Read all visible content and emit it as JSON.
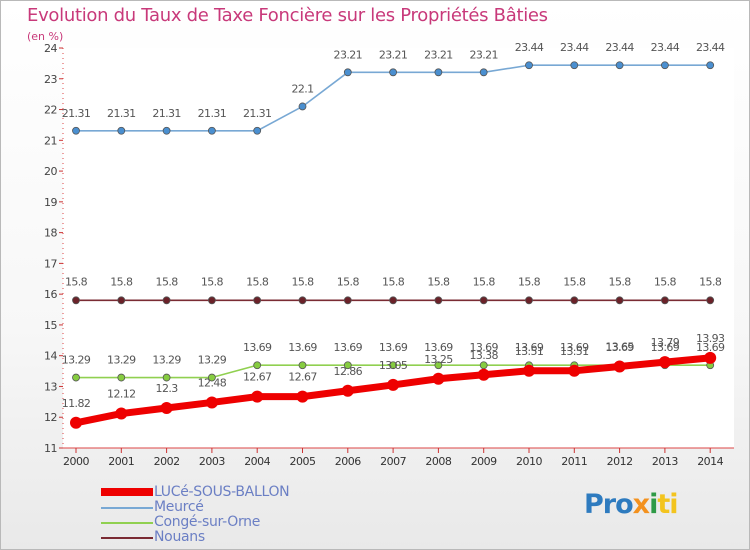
{
  "title": "Evolution du Taux de Taxe Foncière sur les Propriétés Bâties",
  "unit_label": "(en %)",
  "logo": {
    "part1": "Pro",
    "part2": "x",
    "part3": "i",
    "part4": "ti"
  },
  "chart_data": {
    "type": "line",
    "title": "Evolution du Taux de Taxe Foncière sur les Propriétés Bâties",
    "ylabel": "(en %)",
    "xlabel": "",
    "ylim": [
      11,
      24
    ],
    "yticks": [
      "11",
      "12",
      "13",
      "14",
      "15",
      "16",
      "17",
      "18",
      "19",
      "20",
      "21",
      "22",
      "23",
      "24"
    ],
    "categories": [
      "2000",
      "2001",
      "2002",
      "2003",
      "2004",
      "2005",
      "2006",
      "2007",
      "2008",
      "2009",
      "2010",
      "2011",
      "2012",
      "2013",
      "2014"
    ],
    "series": [
      {
        "name": "LUCé-SOUS-BALLON",
        "color": "#ee0000",
        "values": [
          11.82,
          12.12,
          12.3,
          12.48,
          12.67,
          12.67,
          12.86,
          13.05,
          13.25,
          13.38,
          13.51,
          13.51,
          13.65,
          13.79,
          13.93
        ],
        "labels": [
          "11.82",
          "12.12",
          "12.3",
          "12.48",
          "12.67",
          "12.67",
          "12.86",
          "13.05",
          "13.25",
          "13.38",
          "13.51",
          "13.51",
          "13.65",
          "13.79",
          "13.93"
        ]
      },
      {
        "name": "Meurcé",
        "color": "#78a8d4",
        "values": [
          21.31,
          21.31,
          21.31,
          21.31,
          21.31,
          22.1,
          23.21,
          23.21,
          23.21,
          23.21,
          23.44,
          23.44,
          23.44,
          23.44,
          23.44
        ],
        "labels": [
          "21.31",
          "21.31",
          "21.31",
          "21.31",
          "21.31",
          "22.1",
          "23.21",
          "23.21",
          "23.21",
          "23.21",
          "23.44",
          "23.44",
          "23.44",
          "23.44",
          "23.44"
        ]
      },
      {
        "name": "Congé-sur-Orne",
        "color": "#90d050",
        "values": [
          13.29,
          13.29,
          13.29,
          13.29,
          13.69,
          13.69,
          13.69,
          13.69,
          13.69,
          13.69,
          13.69,
          13.69,
          13.69,
          13.69,
          13.69
        ],
        "labels": [
          "13.29",
          "13.29",
          "13.29",
          "13.29",
          "13.69",
          "13.69",
          "13.69",
          "13.69",
          "13.69",
          "13.69",
          "13.69",
          "13.69",
          "13.69",
          "13.69",
          "13.69"
        ]
      },
      {
        "name": "Nouans",
        "color": "#7a2b33",
        "values": [
          15.8,
          15.8,
          15.8,
          15.8,
          15.8,
          15.8,
          15.8,
          15.8,
          15.8,
          15.8,
          15.8,
          15.8,
          15.8,
          15.8,
          15.8
        ],
        "labels": [
          "15.8",
          "15.8",
          "15.8",
          "15.8",
          "15.8",
          "15.8",
          "15.8",
          "15.8",
          "15.8",
          "15.8",
          "15.8",
          "15.8",
          "15.8",
          "15.8",
          "15.8"
        ]
      }
    ],
    "legend_position": "bottom-left"
  }
}
